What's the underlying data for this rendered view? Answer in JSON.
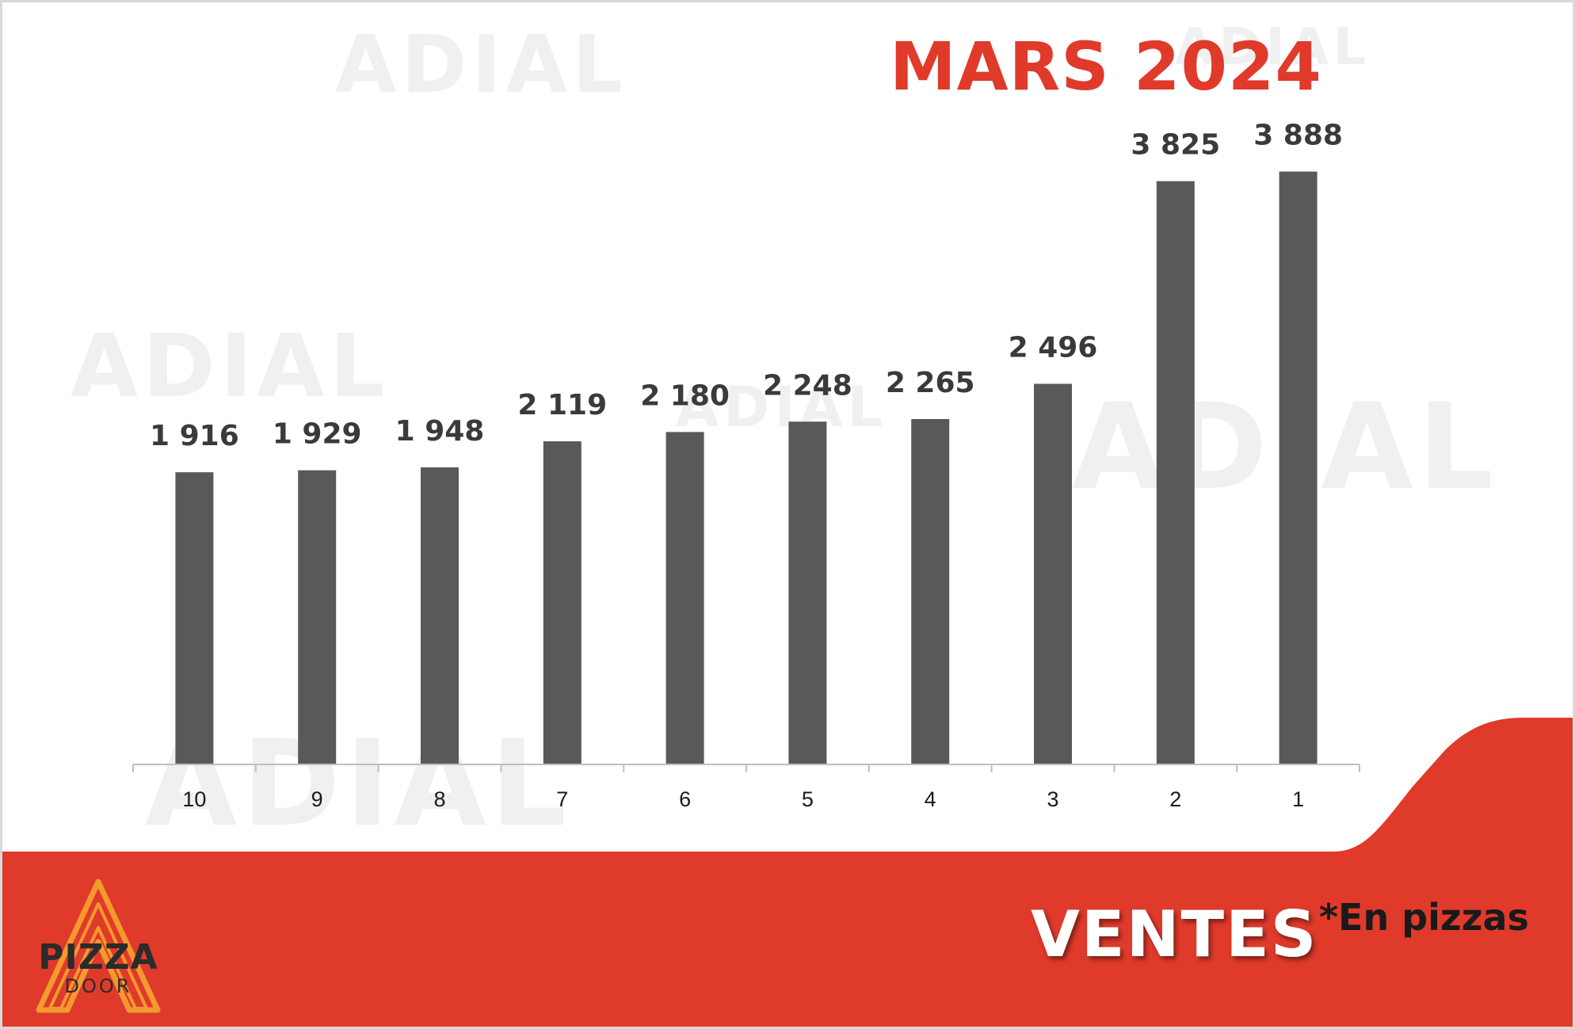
{
  "title": "MARS 2024",
  "footer": {
    "label": "VENTES",
    "note": "*En pizzas"
  },
  "logo": {
    "name": "PIZZA",
    "sub": "DOOR"
  },
  "watermark": "ADIAL",
  "colors": {
    "bar": "#595959",
    "accent": "#e03a2b",
    "axis": "#bfbfbf",
    "value_label": "#3a3a3a"
  },
  "chart_data": {
    "type": "bar",
    "categories": [
      "10",
      "9",
      "8",
      "7",
      "6",
      "5",
      "4",
      "3",
      "2",
      "1"
    ],
    "values": [
      1916,
      1929,
      1948,
      2119,
      2180,
      2248,
      2265,
      2496,
      3825,
      3888
    ],
    "value_labels": [
      "1 916",
      "1 929",
      "1 948",
      "2 119",
      "2 180",
      "2 248",
      "2 265",
      "2 496",
      "3 825",
      "3 888"
    ],
    "title": "MARS 2024",
    "xlabel": "",
    "ylabel": "",
    "ylim": [
      0,
      4000
    ],
    "grid": false,
    "legend": "none"
  }
}
